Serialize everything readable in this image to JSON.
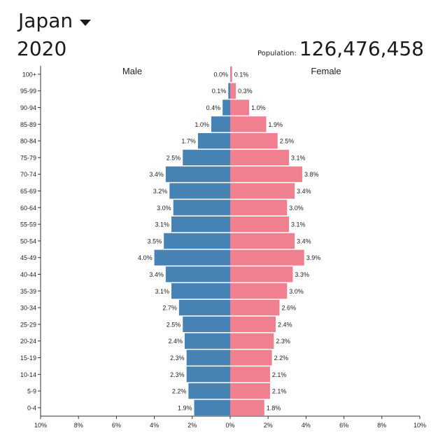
{
  "header": {
    "country": "Japan",
    "year": "2020",
    "population_label": "Population:",
    "population_value": "126,476,458"
  },
  "chart_data": {
    "type": "bar",
    "orientation": "horizontal-pyramid",
    "male_label": "Male",
    "female_label": "Female",
    "male_color": "#4682b4",
    "female_color": "#f08090",
    "categories": [
      "100+",
      "95-99",
      "90-94",
      "85-89",
      "80-84",
      "75-79",
      "70-74",
      "65-69",
      "60-64",
      "55-59",
      "50-54",
      "45-49",
      "40-44",
      "35-39",
      "30-34",
      "25-29",
      "20-24",
      "15-19",
      "10-14",
      "5-9",
      "0-4"
    ],
    "series": [
      {
        "name": "Male",
        "values": [
          0.0,
          0.1,
          0.4,
          1.0,
          1.7,
          2.5,
          3.4,
          3.2,
          3.0,
          3.1,
          3.5,
          4.0,
          3.4,
          3.1,
          2.7,
          2.5,
          2.4,
          2.3,
          2.3,
          2.2,
          1.9
        ]
      },
      {
        "name": "Female",
        "values": [
          0.1,
          0.3,
          1.0,
          1.9,
          2.5,
          3.1,
          3.8,
          3.4,
          3.0,
          3.1,
          3.4,
          3.9,
          3.3,
          3.0,
          2.6,
          2.4,
          2.3,
          2.2,
          2.1,
          2.1,
          1.8
        ]
      }
    ],
    "value_labels": {
      "male": [
        "0.0%",
        "0.1%",
        "0.4%",
        "1.0%",
        "1.7%",
        "2.5%",
        "3.4%",
        "3.2%",
        "3.0%",
        "3.1%",
        "3.5%",
        "4.0%",
        "3.4%",
        "3.1%",
        "2.7%",
        "2.5%",
        "2.4%",
        "2.3%",
        "2.3%",
        "2.2%",
        "1.9%"
      ],
      "female": [
        "0.1%",
        "0.3%",
        "1.0%",
        "1.9%",
        "2.5%",
        "3.1%",
        "3.8%",
        "3.4%",
        "3.0%",
        "3.1%",
        "3.4%",
        "3.9%",
        "3.3%",
        "3.0%",
        "2.6%",
        "2.4%",
        "2.3%",
        "2.2%",
        "2.1%",
        "2.1%",
        "1.8%"
      ]
    },
    "x_ticks": [
      "10%",
      "8%",
      "6%",
      "4%",
      "2%",
      "0%",
      "2%",
      "4%",
      "6%",
      "8%",
      "10%"
    ],
    "xlim": [
      -10,
      10
    ],
    "grid": false
  }
}
